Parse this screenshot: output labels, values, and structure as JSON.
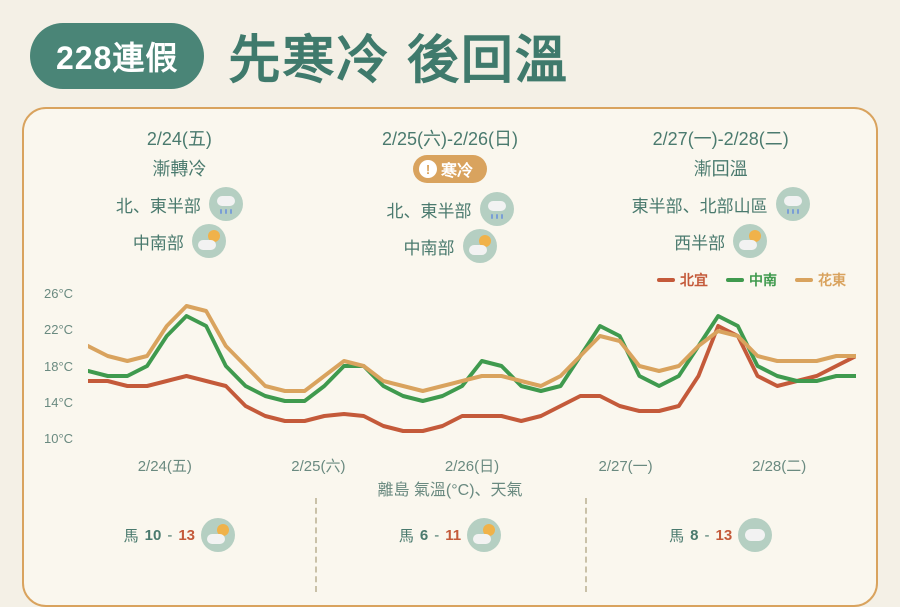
{
  "header": {
    "badge": "228連假",
    "title": "先寒冷 後回溫"
  },
  "periods": [
    {
      "date": "2/24(五)",
      "sub": "漸轉冷",
      "cold_badge": null,
      "conds": [
        {
          "label": "北、東半部",
          "icon": "rain"
        },
        {
          "label": "中南部",
          "icon": "suncloud"
        }
      ]
    },
    {
      "date": "2/25(六)-2/26(日)",
      "sub": null,
      "cold_badge": "寒冷",
      "conds": [
        {
          "label": "北、東半部",
          "icon": "rain"
        },
        {
          "label": "中南部",
          "icon": "suncloud"
        }
      ]
    },
    {
      "date": "2/27(一)-2/28(二)",
      "sub": "漸回溫",
      "cold_badge": null,
      "conds": [
        {
          "label": "東半部、北部山區",
          "icon": "rain"
        },
        {
          "label": "西半部",
          "icon": "suncloud"
        }
      ]
    }
  ],
  "chart": {
    "type": "line",
    "ylabel_suffix": "°C",
    "ylim": [
      10,
      26
    ],
    "ytick_step": 4,
    "yticks": [
      "26°C",
      "22°C",
      "18°C",
      "14°C",
      "10°C"
    ],
    "x_days": [
      "2/24(五)",
      "2/25(六)",
      "2/26(日)",
      "2/27(一)",
      "2/28(二)"
    ],
    "background_color": "#faf7ee",
    "line_width": 4,
    "series": [
      {
        "name": "北宜",
        "color": "#c45a3a",
        "y": [
          16.5,
          16.5,
          16,
          16,
          16.5,
          17,
          16.5,
          16,
          14,
          13,
          12.5,
          12.5,
          13,
          13.2,
          13,
          12,
          11.5,
          11.5,
          12,
          13,
          13,
          13,
          12.5,
          13,
          14,
          15,
          15,
          14,
          13.5,
          13.5,
          14,
          17,
          22,
          21,
          17,
          16,
          16.5,
          17,
          18,
          19
        ]
      },
      {
        "name": "中南",
        "color": "#3f9a4e",
        "y": [
          17.5,
          17,
          17,
          18,
          21,
          23,
          22,
          18,
          16,
          15,
          14.5,
          14.5,
          16,
          18,
          18,
          16,
          15,
          14.5,
          15,
          16,
          18.5,
          18,
          16,
          15.5,
          16,
          19,
          22,
          21,
          17,
          16,
          17,
          20,
          23,
          22,
          18,
          17,
          16.5,
          16.5,
          17,
          17
        ]
      },
      {
        "name": "花東",
        "color": "#d9a35e",
        "y": [
          20,
          19,
          18.5,
          19,
          22,
          24,
          23.5,
          20,
          18,
          16,
          15.5,
          15.5,
          17,
          18.5,
          18,
          16.5,
          16,
          15.5,
          16,
          16.5,
          17,
          17,
          16.5,
          16,
          17,
          19,
          21,
          20.5,
          18,
          17.5,
          18,
          20,
          21.5,
          21,
          19,
          18.5,
          18.5,
          18.5,
          19,
          19
        ]
      }
    ],
    "legend_labels": {
      "a": "北宜",
      "b": "中南",
      "c": "花東"
    }
  },
  "islands": {
    "title": "離島 氣溫(°C)、天氣",
    "label": "馬",
    "groups": [
      {
        "low": "10",
        "high": "13",
        "icon": "suncloud"
      },
      {
        "low": "6",
        "high": "11",
        "icon": "suncloud"
      },
      {
        "low": "8",
        "high": "13",
        "icon": "cloud"
      }
    ]
  }
}
